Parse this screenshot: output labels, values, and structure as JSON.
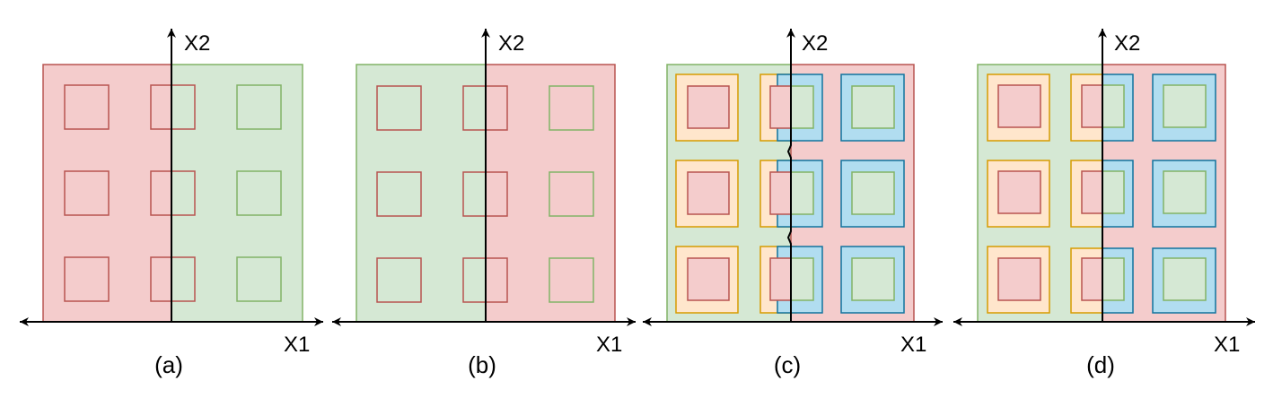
{
  "panels": [
    {
      "id": "a",
      "caption": "(a)",
      "x_axis": "X1",
      "y_axis": "X2"
    },
    {
      "id": "b",
      "caption": "(b)",
      "x_axis": "X1",
      "y_axis": "X2"
    },
    {
      "id": "c",
      "caption": "(c)",
      "x_axis": "X1",
      "y_axis": "X2"
    },
    {
      "id": "d",
      "caption": "(d)",
      "x_axis": "X1",
      "y_axis": "X2"
    }
  ],
  "colors": {
    "red_fill": "#f4cccc",
    "red_stroke": "#b85450",
    "green_fill": "#d5e8d4",
    "green_stroke": "#82b366",
    "orange_fill": "#ffe6cc",
    "orange_stroke": "#d79b00",
    "blue_fill": "#b1ddf0",
    "blue_stroke": "#10739e",
    "axis": "#000000"
  }
}
